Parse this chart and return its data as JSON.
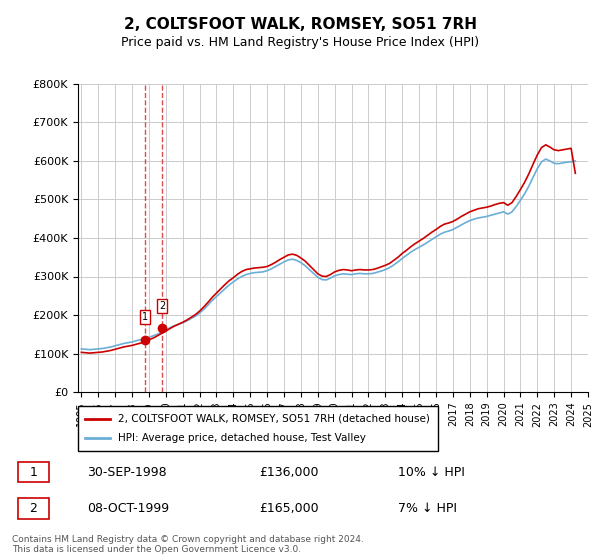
{
  "title": "2, COLTSFOOT WALK, ROMSEY, SO51 7RH",
  "subtitle": "Price paid vs. HM Land Registry's House Price Index (HPI)",
  "legend_line1": "2, COLTSFOOT WALK, ROMSEY, SO51 7RH (detached house)",
  "legend_line2": "HPI: Average price, detached house, Test Valley",
  "footer": "Contains HM Land Registry data © Crown copyright and database right 2024.\nThis data is licensed under the Open Government Licence v3.0.",
  "transactions": [
    {
      "num": 1,
      "date": "30-SEP-1998",
      "price": 136000,
      "hpi_diff": "10% ↓ HPI",
      "year": 1998.75
    },
    {
      "num": 2,
      "date": "08-OCT-1999",
      "price": 165000,
      "hpi_diff": "7% ↓ HPI",
      "year": 1999.78
    }
  ],
  "hpi_color": "#6baed6",
  "price_color": "#cc0000",
  "vline_color": "#cc0000",
  "background_color": "#ffffff",
  "grid_color": "#cccccc",
  "ylim": [
    0,
    800000
  ],
  "yticks": [
    0,
    100000,
    200000,
    300000,
    400000,
    500000,
    600000,
    700000,
    800000
  ],
  "hpi_data": {
    "years": [
      1995.0,
      1995.25,
      1995.5,
      1995.75,
      1996.0,
      1996.25,
      1996.5,
      1996.75,
      1997.0,
      1997.25,
      1997.5,
      1997.75,
      1998.0,
      1998.25,
      1998.5,
      1998.75,
      1999.0,
      1999.25,
      1999.5,
      1999.75,
      2000.0,
      2000.25,
      2000.5,
      2000.75,
      2001.0,
      2001.25,
      2001.5,
      2001.75,
      2002.0,
      2002.25,
      2002.5,
      2002.75,
      2003.0,
      2003.25,
      2003.5,
      2003.75,
      2004.0,
      2004.25,
      2004.5,
      2004.75,
      2005.0,
      2005.25,
      2005.5,
      2005.75,
      2006.0,
      2006.25,
      2006.5,
      2006.75,
      2007.0,
      2007.25,
      2007.5,
      2007.75,
      2008.0,
      2008.25,
      2008.5,
      2008.75,
      2009.0,
      2009.25,
      2009.5,
      2009.75,
      2010.0,
      2010.25,
      2010.5,
      2010.75,
      2011.0,
      2011.25,
      2011.5,
      2011.75,
      2012.0,
      2012.25,
      2012.5,
      2012.75,
      2013.0,
      2013.25,
      2013.5,
      2013.75,
      2014.0,
      2014.25,
      2014.5,
      2014.75,
      2015.0,
      2015.25,
      2015.5,
      2015.75,
      2016.0,
      2016.25,
      2016.5,
      2016.75,
      2017.0,
      2017.25,
      2017.5,
      2017.75,
      2018.0,
      2018.25,
      2018.5,
      2018.75,
      2019.0,
      2019.25,
      2019.5,
      2019.75,
      2020.0,
      2020.25,
      2020.5,
      2020.75,
      2021.0,
      2021.25,
      2021.5,
      2021.75,
      2022.0,
      2022.25,
      2022.5,
      2022.75,
      2023.0,
      2023.25,
      2023.5,
      2023.75,
      2024.0,
      2024.25
    ],
    "values": [
      112000,
      111000,
      110000,
      111000,
      112000,
      113000,
      115000,
      117000,
      120000,
      123000,
      126000,
      128000,
      130000,
      133000,
      136000,
      139000,
      142000,
      146000,
      150000,
      155000,
      161000,
      167000,
      172000,
      176000,
      180000,
      185000,
      191000,
      197000,
      205000,
      215000,
      226000,
      238000,
      248000,
      258000,
      268000,
      278000,
      286000,
      294000,
      300000,
      305000,
      308000,
      310000,
      311000,
      312000,
      315000,
      320000,
      326000,
      332000,
      338000,
      343000,
      345000,
      342000,
      336000,
      328000,
      318000,
      308000,
      298000,
      292000,
      291000,
      296000,
      302000,
      305000,
      307000,
      306000,
      305000,
      307000,
      308000,
      307000,
      307000,
      308000,
      311000,
      314000,
      318000,
      323000,
      330000,
      338000,
      347000,
      355000,
      363000,
      370000,
      376000,
      382000,
      389000,
      396000,
      403000,
      410000,
      415000,
      418000,
      422000,
      428000,
      434000,
      440000,
      445000,
      449000,
      452000,
      454000,
      456000,
      459000,
      462000,
      465000,
      468000,
      462000,
      468000,
      482000,
      498000,
      515000,
      535000,
      558000,
      580000,
      598000,
      605000,
      600000,
      594000,
      593000,
      595000,
      597000,
      598000,
      600000
    ]
  },
  "price_line_data": {
    "years": [
      1995.0,
      1995.25,
      1995.5,
      1995.75,
      1996.0,
      1996.25,
      1996.5,
      1996.75,
      1997.0,
      1997.25,
      1997.5,
      1997.75,
      1998.0,
      1998.25,
      1998.5,
      1998.75,
      1999.0,
      1999.25,
      1999.5,
      1999.75,
      2000.0,
      2000.25,
      2000.5,
      2000.75,
      2001.0,
      2001.25,
      2001.5,
      2001.75,
      2002.0,
      2002.25,
      2002.5,
      2002.75,
      2003.0,
      2003.25,
      2003.5,
      2003.75,
      2004.0,
      2004.25,
      2004.5,
      2004.75,
      2005.0,
      2005.25,
      2005.5,
      2005.75,
      2006.0,
      2006.25,
      2006.5,
      2006.75,
      2007.0,
      2007.25,
      2007.5,
      2007.75,
      2008.0,
      2008.25,
      2008.5,
      2008.75,
      2009.0,
      2009.25,
      2009.5,
      2009.75,
      2010.0,
      2010.25,
      2010.5,
      2010.75,
      2011.0,
      2011.25,
      2011.5,
      2011.75,
      2012.0,
      2012.25,
      2012.5,
      2012.75,
      2013.0,
      2013.25,
      2013.5,
      2013.75,
      2014.0,
      2014.25,
      2014.5,
      2014.75,
      2015.0,
      2015.25,
      2015.5,
      2015.75,
      2016.0,
      2016.25,
      2016.5,
      2016.75,
      2017.0,
      2017.25,
      2017.5,
      2017.75,
      2018.0,
      2018.25,
      2018.5,
      2018.75,
      2019.0,
      2019.25,
      2019.5,
      2019.75,
      2020.0,
      2020.25,
      2020.5,
      2020.75,
      2021.0,
      2021.25,
      2021.5,
      2021.75,
      2022.0,
      2022.25,
      2022.5,
      2022.75,
      2023.0,
      2023.25,
      2023.5,
      2023.75,
      2024.0,
      2024.25
    ],
    "values": [
      103000,
      102000,
      101000,
      102000,
      103000,
      104000,
      106000,
      108000,
      111000,
      114000,
      117000,
      119000,
      121000,
      124000,
      127000,
      130000,
      136000,
      140000,
      146000,
      152000,
      158000,
      165000,
      171000,
      176000,
      181000,
      187000,
      194000,
      201000,
      210000,
      221000,
      233000,
      246000,
      257000,
      268000,
      279000,
      289000,
      297000,
      306000,
      313000,
      318000,
      320000,
      322000,
      323000,
      324000,
      326000,
      331000,
      337000,
      344000,
      350000,
      356000,
      358000,
      355000,
      348000,
      340000,
      329000,
      318000,
      307000,
      301000,
      300000,
      305000,
      312000,
      316000,
      318000,
      317000,
      315000,
      317000,
      318000,
      317000,
      317000,
      318000,
      321000,
      325000,
      329000,
      334000,
      342000,
      350000,
      360000,
      368000,
      377000,
      385000,
      392000,
      399000,
      407000,
      415000,
      422000,
      430000,
      436000,
      439000,
      443000,
      449000,
      456000,
      462000,
      468000,
      472000,
      476000,
      478000,
      480000,
      483000,
      487000,
      490000,
      492000,
      485000,
      492000,
      508000,
      526000,
      545000,
      567000,
      592000,
      616000,
      635000,
      642000,
      636000,
      629000,
      627000,
      629000,
      631000,
      633000,
      568000
    ]
  }
}
